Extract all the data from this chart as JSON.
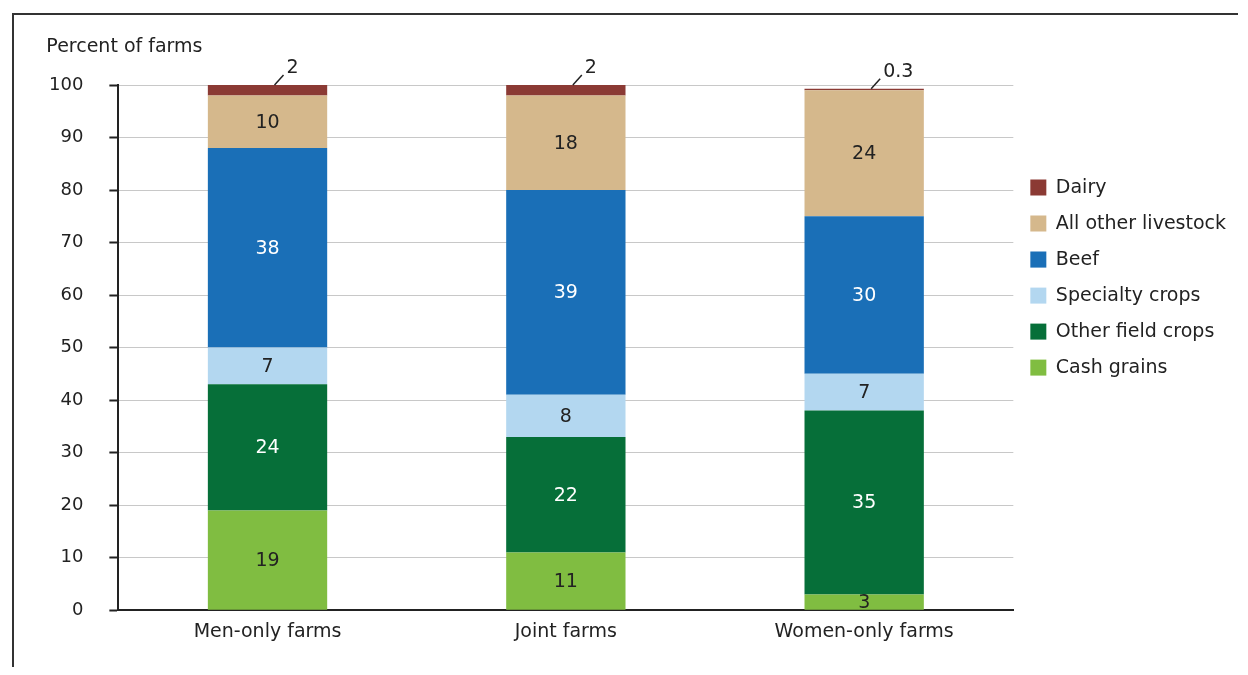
{
  "chart_data": {
    "type": "bar",
    "ylabel": "Percent of farms",
    "categories": [
      "Men-only farms",
      "Joint farms",
      "Women-only farms"
    ],
    "series": [
      {
        "name": "Cash grains",
        "color": "#80bd41",
        "values": [
          19,
          11,
          3
        ]
      },
      {
        "name": "Other field crops",
        "color": "#066f39",
        "values": [
          24,
          22,
          35
        ]
      },
      {
        "name": "Specialty crops",
        "color": "#b3d7f0",
        "values": [
          7,
          8,
          7
        ]
      },
      {
        "name": "Beef",
        "color": "#1a6fb7",
        "values": [
          38,
          39,
          30
        ]
      },
      {
        "name": "All other livestock",
        "color": "#d5b88c",
        "values": [
          10,
          18,
          24
        ]
      },
      {
        "name": "Dairy",
        "color": "#8b3a34",
        "values": [
          2,
          2,
          0.3
        ]
      }
    ],
    "stacked": true,
    "ylim": [
      0,
      100
    ],
    "yticks": [
      0,
      10,
      20,
      30,
      40,
      50,
      60,
      70,
      80,
      90,
      100
    ],
    "grid": "y",
    "legend": "right",
    "data_labels": true
  }
}
